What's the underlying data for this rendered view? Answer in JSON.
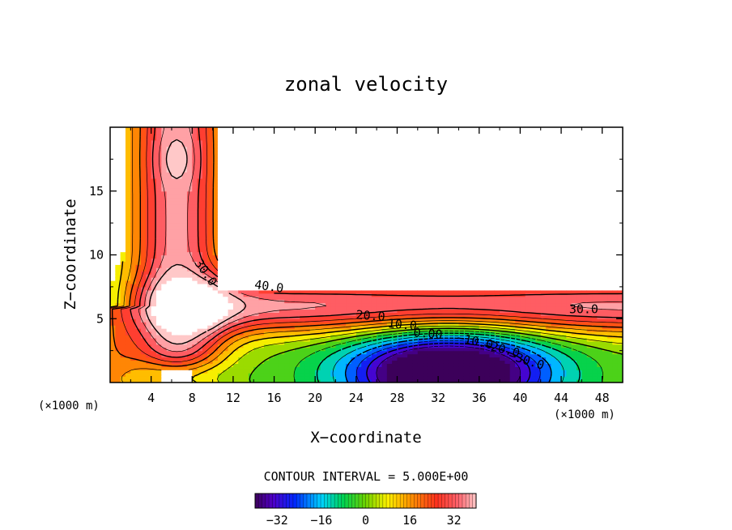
{
  "chart_data": {
    "type": "heatmap",
    "title": "zonal velocity",
    "xlabel": "X−coordinate",
    "ylabel": "Z−coordinate",
    "xunit_left": "(×1000 m)",
    "xunit_right": "(×1000 m)",
    "xlim": [
      0,
      50
    ],
    "ylim": [
      0,
      20
    ],
    "xticks": [
      4,
      8,
      12,
      16,
      20,
      24,
      28,
      32,
      36,
      40,
      44,
      48
    ],
    "yticks": [
      5,
      10,
      15
    ],
    "contour_interval_label": "CONTOUR INTERVAL = 5.000E+00",
    "contour_interval": 5.0,
    "colorbar": {
      "range": [
        -40,
        40
      ],
      "ticks": [
        -32,
        -16,
        0,
        16,
        32
      ]
    },
    "contour_labels": [
      {
        "text": "30.0",
        "x": 9.3,
        "z": 8.6,
        "angle": 55
      },
      {
        "text": "40.0",
        "x": 15.5,
        "z": 7.5,
        "angle": 8
      },
      {
        "text": "30.0",
        "x": 46.2,
        "z": 5.7,
        "angle": 0
      },
      {
        "text": "20.0",
        "x": 25.4,
        "z": 5.2,
        "angle": 4
      },
      {
        "text": "10.0",
        "x": 28.5,
        "z": 4.5,
        "angle": 5
      },
      {
        "text": "0.00",
        "x": 31.0,
        "z": 3.8,
        "angle": 5
      },
      {
        "text": "−10.0",
        "x": 35.6,
        "z": 3.2,
        "angle": 12
      },
      {
        "text": "−20.0",
        "x": 38.2,
        "z": 2.6,
        "angle": 14
      },
      {
        "text": "−30.0",
        "x": 40.6,
        "z": 1.7,
        "angle": 17
      }
    ]
  }
}
